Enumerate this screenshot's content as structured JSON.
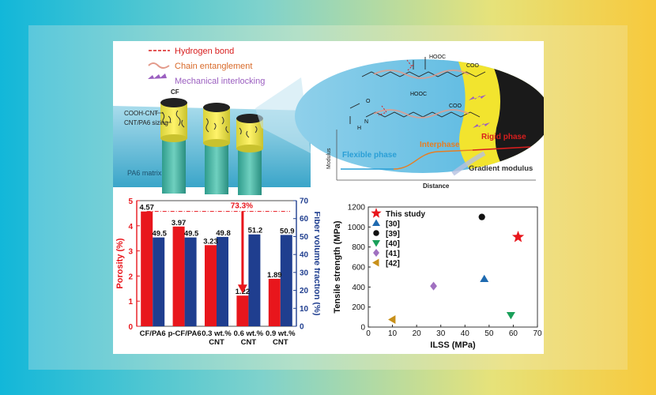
{
  "schematic": {
    "legend": [
      "Hydrogen bond",
      "Chain entanglement",
      "Mechanical interlocking"
    ],
    "labels": {
      "cf": "CF",
      "cooh_cnt": "COOH-CNT",
      "sizing": "CNT/PA6 sizing",
      "matrix": "PA6 matrix"
    },
    "molecule": {
      "hooc_top": "HOOC",
      "coo_top": "COO",
      "hooc_mid": "HOOC",
      "coo_mid": "COO",
      "o": "O",
      "h": "H",
      "n": "N"
    },
    "modulus_plot": {
      "ylabel": "Modulus",
      "xlabel": "Distance",
      "flexible": "Flexible phase",
      "interphase": "Interphase",
      "rigid": "Rigid phase",
      "gradient": "Gradient modulus"
    }
  },
  "colors": {
    "porosity_bar": "#e8161c",
    "fraction_bar": "#1f3e8f",
    "flexible": "#2a9fd6",
    "interphase": "#e67e22",
    "rigid": "#d81e1e"
  },
  "chart_data": [
    {
      "type": "bar",
      "title": "",
      "categories": [
        "CF/PA6",
        "p-CF/PA6",
        "0.3 wt.% CNT",
        "0.6 wt.% CNT",
        "0.9 wt.% CNT"
      ],
      "category_lines": [
        [
          "CF/PA6"
        ],
        [
          "p-CF/PA6"
        ],
        [
          "0.3 wt.%",
          "CNT"
        ],
        [
          "0.6 wt.%",
          "CNT"
        ],
        [
          "0.9 wt.%",
          "CNT"
        ]
      ],
      "series": [
        {
          "name": "Porosity (%)",
          "axis": "left",
          "values": [
            4.57,
            3.97,
            3.23,
            1.22,
            1.89
          ],
          "labels": [
            "4.57",
            "3.97",
            "3.23",
            "1.22",
            "1.89"
          ]
        },
        {
          "name": "Fiber volume fraction (%)",
          "axis": "right",
          "values": [
            49.5,
            49.5,
            49.8,
            51.2,
            50.9
          ],
          "labels": [
            "49.5",
            "49.5",
            "49.8",
            "51.2",
            "50.9"
          ]
        }
      ],
      "ylabel": "Porosity (%)",
      "y2label": "Fiber volume fraction (%)",
      "ylim": [
        0,
        5
      ],
      "y2lim": [
        0,
        70
      ],
      "yticks": [
        "0",
        "1",
        "2",
        "3",
        "4",
        "5"
      ],
      "y2ticks": [
        "0",
        "10",
        "20",
        "30",
        "40",
        "50",
        "60",
        "70"
      ],
      "annotation": "73.3%"
    },
    {
      "type": "scatter",
      "title": "",
      "xlabel": "ILSS (MPa)",
      "ylabel": "Tensile strength (MPa)",
      "xlim": [
        0,
        70
      ],
      "ylim": [
        0,
        1200
      ],
      "xticks": [
        "0",
        "10",
        "20",
        "30",
        "40",
        "50",
        "60",
        "70"
      ],
      "yticks": [
        "0",
        "200",
        "400",
        "600",
        "800",
        "1000",
        "1200"
      ],
      "legend_position": "top-left",
      "series": [
        {
          "name": "This study",
          "marker": "star",
          "color": "#e8161c",
          "x": 62,
          "y": 900
        },
        {
          "name": "[30]",
          "marker": "triangle-up",
          "color": "#1e6ab0",
          "x": 48,
          "y": 480
        },
        {
          "name": "[39]",
          "marker": "circle",
          "color": "#111111",
          "x": 47,
          "y": 1100
        },
        {
          "name": "[40]",
          "marker": "triangle-down",
          "color": "#1aa05a",
          "x": 59,
          "y": 120
        },
        {
          "name": "[41]",
          "marker": "diamond",
          "color": "#a070c0",
          "x": 27,
          "y": 410
        },
        {
          "name": "[42]",
          "marker": "triangle-left",
          "color": "#c8901a",
          "x": 10,
          "y": 75
        }
      ]
    }
  ]
}
